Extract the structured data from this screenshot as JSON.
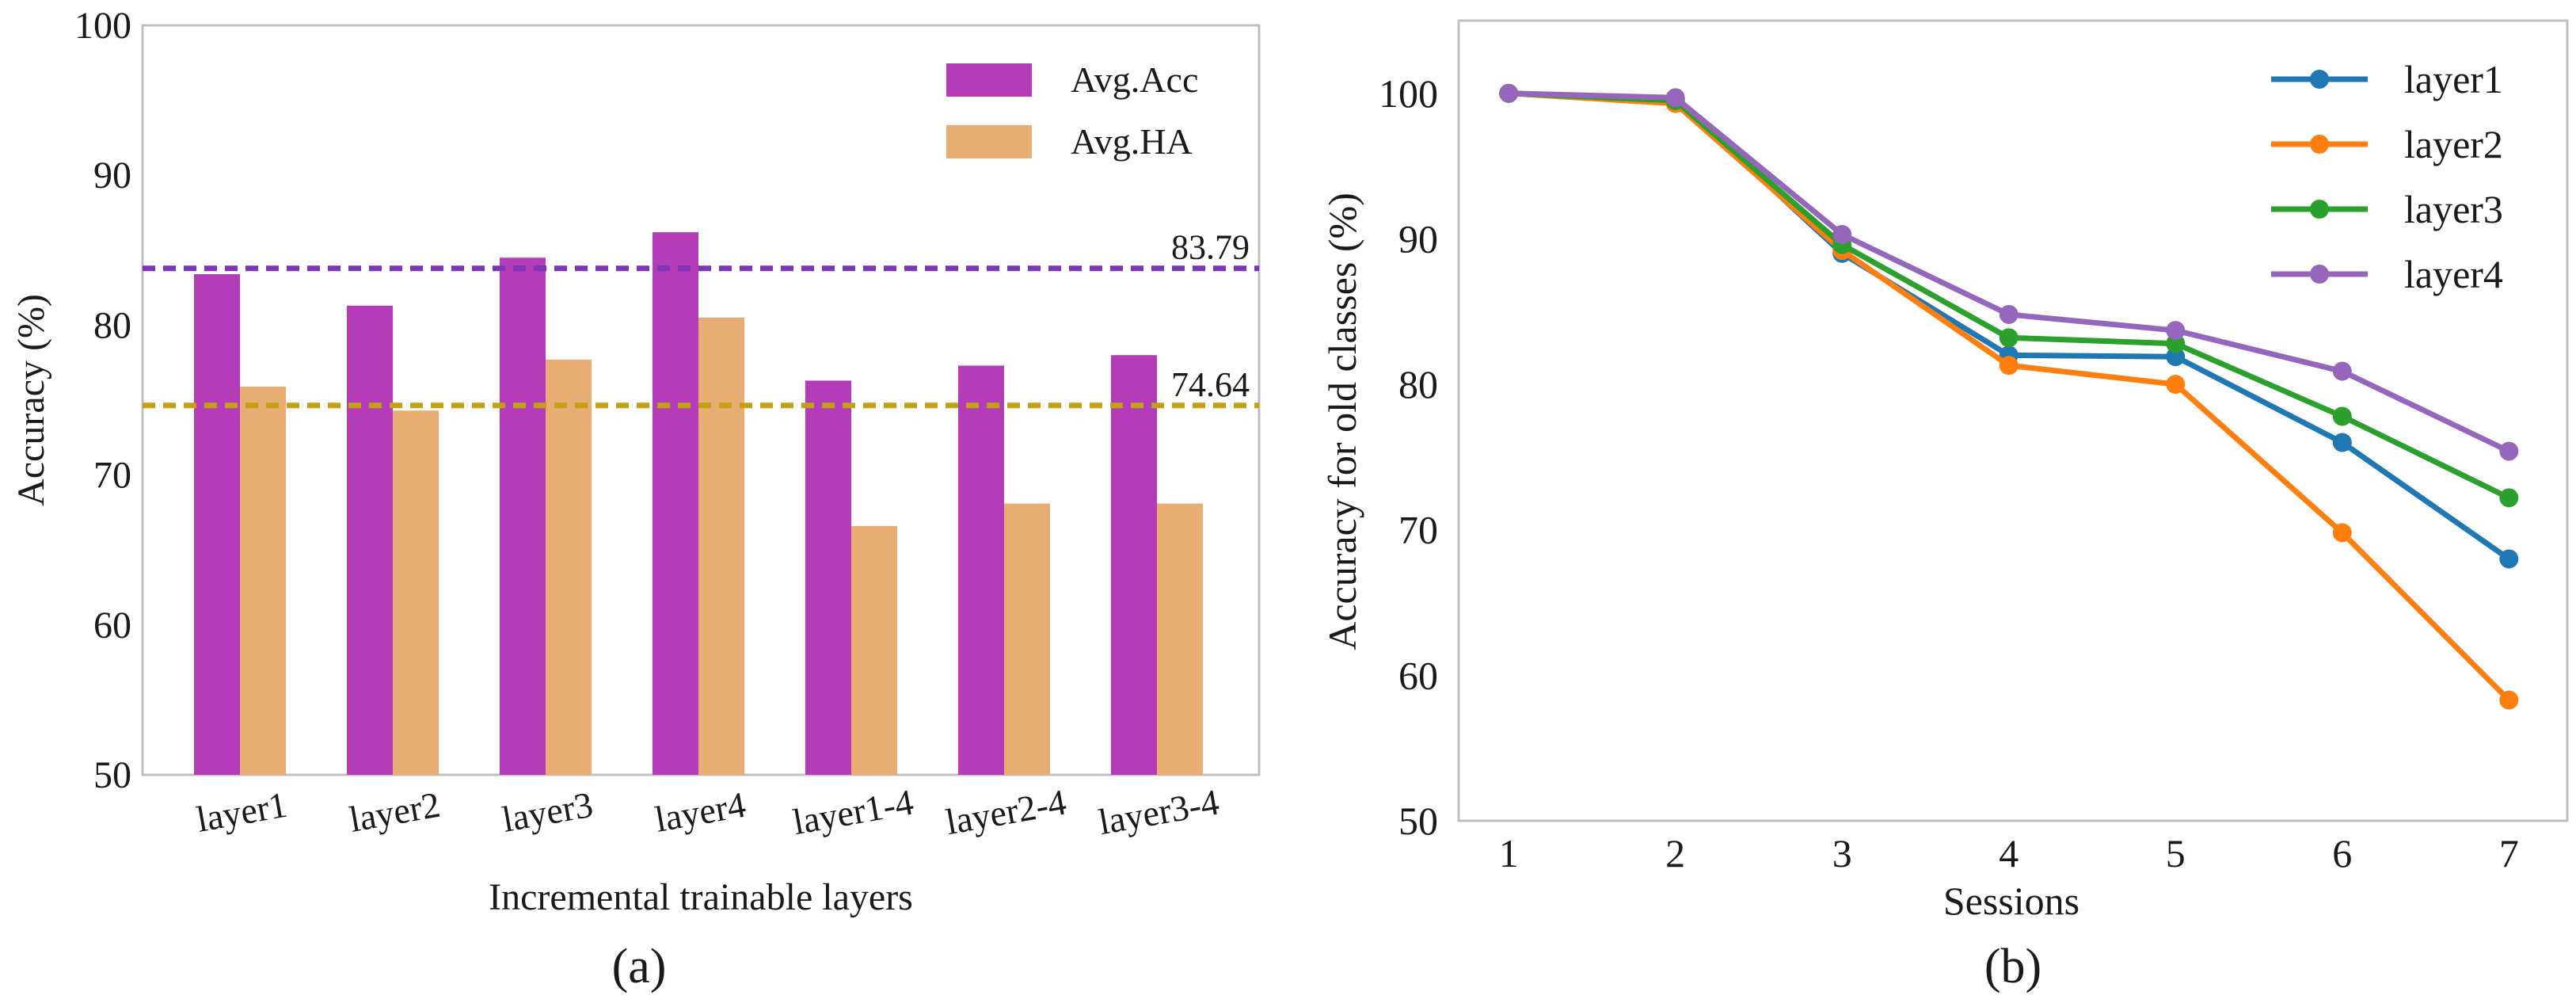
{
  "chart_data": [
    {
      "type": "bar",
      "panel_label": "(a)",
      "title": "",
      "xlabel": "Incremental trainable layers",
      "ylabel": "Accuracy (%)",
      "ylim": [
        50,
        100
      ],
      "yticks": [
        50,
        60,
        70,
        80,
        90,
        100
      ],
      "grid": false,
      "legend_position": "top-right",
      "categories": [
        "layer1",
        "layer2",
        "layer3",
        "layer4",
        "layer1-4",
        "layer2-4",
        "layer3-4"
      ],
      "series": [
        {
          "name": "Avg.Acc",
          "color": "#b43cb9",
          "values": [
            83.4,
            81.3,
            84.5,
            86.2,
            76.3,
            77.3,
            78.0
          ]
        },
        {
          "name": "Avg.HA",
          "color": "#e8ad73",
          "values": [
            75.9,
            74.3,
            77.7,
            80.5,
            66.6,
            68.1,
            68.1
          ]
        }
      ],
      "reference_lines": [
        {
          "value": 83.79,
          "label": "83.79",
          "color": "#7b35b5"
        },
        {
          "value": 74.64,
          "label": "74.64",
          "color": "#c4a016"
        }
      ]
    },
    {
      "type": "line",
      "panel_label": "(b)",
      "title": "",
      "xlabel": "Sessions",
      "ylabel": "Accuracy for old classes (%)",
      "x": [
        1,
        2,
        3,
        4,
        5,
        6,
        7
      ],
      "xlim": [
        0.7,
        7.35
      ],
      "ylim": [
        50,
        105
      ],
      "yticks": [
        50,
        60,
        70,
        80,
        90,
        100
      ],
      "grid": false,
      "legend_position": "top-right",
      "series": [
        {
          "name": "layer1",
          "color": "#1f77b4",
          "values": [
            100,
            99.6,
            89.0,
            82.0,
            81.9,
            76.0,
            68.0
          ]
        },
        {
          "name": "layer2",
          "color": "#ff7f0e",
          "values": [
            100,
            99.3,
            89.2,
            81.3,
            80.0,
            69.8,
            58.3
          ]
        },
        {
          "name": "layer3",
          "color": "#2ca02c",
          "values": [
            100,
            99.5,
            89.6,
            83.2,
            82.8,
            77.8,
            72.2
          ]
        },
        {
          "name": "layer4",
          "color": "#9467bd",
          "values": [
            100,
            99.7,
            90.3,
            84.8,
            83.7,
            80.9,
            75.4
          ]
        }
      ]
    }
  ]
}
